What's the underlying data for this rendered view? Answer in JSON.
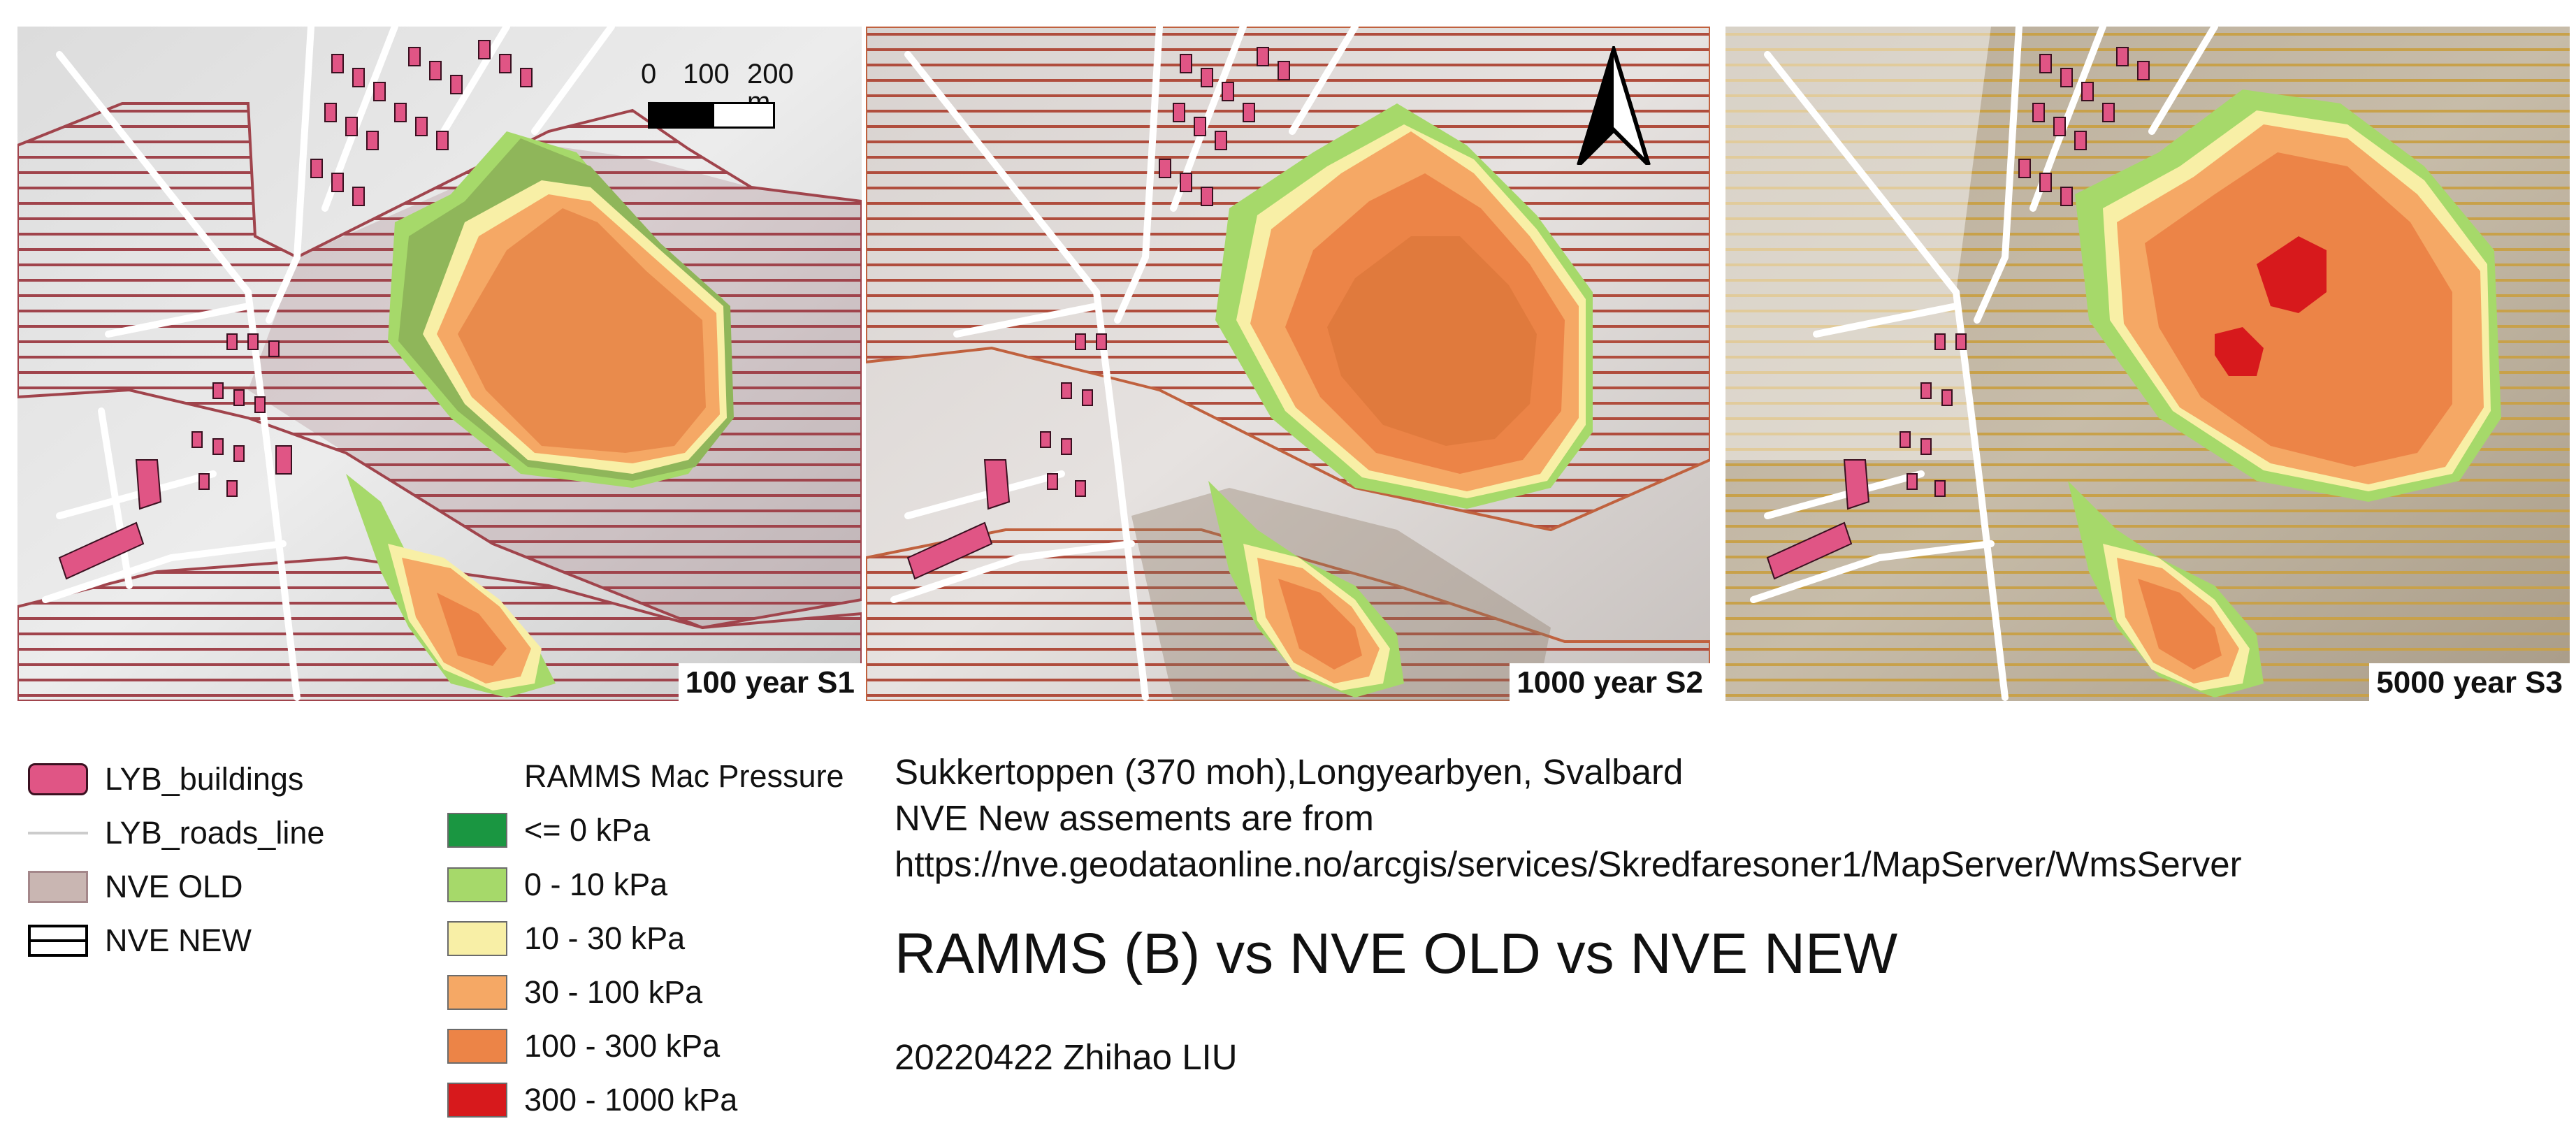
{
  "panels": [
    {
      "label": "100 year S1"
    },
    {
      "label": "1000 year S2"
    },
    {
      "label": "5000 year S3"
    }
  ],
  "scalebar": {
    "zero": "0",
    "mid": "100",
    "max": "200 m"
  },
  "north_arrow": "north-arrow",
  "legend_layers": [
    {
      "label": "LYB_buildings",
      "symbol": "buildings-swatch",
      "color": "#e05585"
    },
    {
      "label": "LYB_roads_line",
      "symbol": "roads-line-swatch",
      "color": "#cccccc"
    },
    {
      "label": "NVE OLD",
      "symbol": "nve-old-swatch",
      "color": "#c9b6b2"
    },
    {
      "label": "NVE NEW",
      "symbol": "nve-new-swatch",
      "color": "#000000"
    }
  ],
  "pressure_legend": {
    "title": "RAMMS Mac Pressure",
    "classes": [
      {
        "label": "<= 0 kPa",
        "color": "#1a9641"
      },
      {
        "label": "0 - 10 kPa",
        "color": "#a6d96a"
      },
      {
        "label": "10 - 30 kPa",
        "color": "#f8efa6"
      },
      {
        "label": "30 - 100 kPa",
        "color": "#f5a865"
      },
      {
        "label": "100 - 300 kPa",
        "color": "#ec8447"
      },
      {
        "label": "300 - 1000 kPa",
        "color": "#d7191c"
      }
    ]
  },
  "info": {
    "location": "Sukkertoppen (370 moh),Longyearbyen, Svalbard",
    "source_line": "NVE New assements are from",
    "url": "https://nve.geodataonline.no/arcgis/services/Skredfaresoner1/MapServer/WmsServer",
    "title": "RAMMS (B) vs NVE OLD vs NVE NEW",
    "author": "20220422 Zhihao LIU"
  },
  "colors": {
    "hatch_s1": "#a0444c",
    "hatch_s2": "#c0613e",
    "hatch_s3": "#c8a14a",
    "nve_old_fill": "#8a7560",
    "terrain": "#e4e4e4",
    "road": "#ffffff"
  }
}
